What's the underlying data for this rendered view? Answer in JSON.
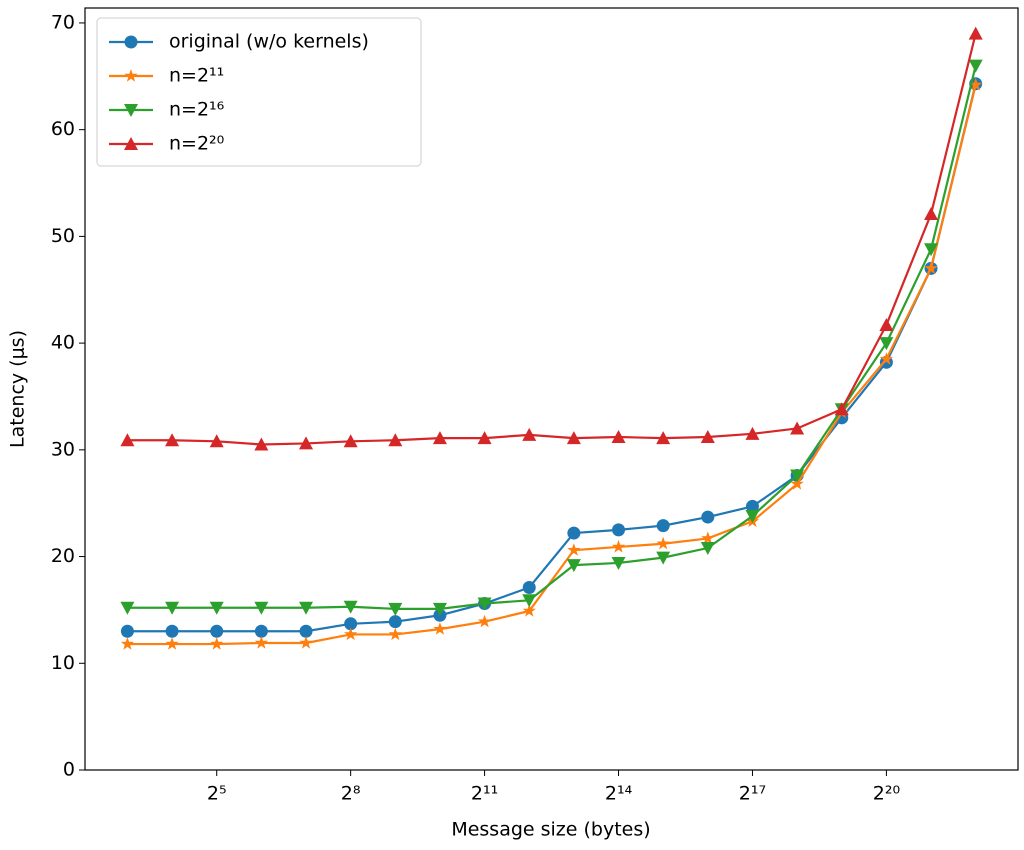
{
  "chart_data": {
    "type": "line",
    "xlabel": "Message size (bytes)",
    "ylabel": "Latency (μs)",
    "xscale": "log",
    "logbase": 2,
    "x": [
      8,
      16,
      32,
      64,
      128,
      256,
      512,
      1024,
      2048,
      4096,
      8192,
      16384,
      32768,
      65536,
      131072,
      262144,
      524288,
      1048576,
      2097152,
      4194304
    ],
    "series": [
      {
        "name": "original (w/o kernels)",
        "color": "#1f77b4",
        "marker": "circle",
        "values": [
          13.0,
          13.0,
          13.0,
          13.0,
          13.0,
          13.7,
          13.9,
          14.5,
          15.6,
          17.1,
          22.2,
          22.5,
          22.9,
          23.7,
          24.7,
          27.6,
          33.0,
          38.2,
          47.0,
          64.3
        ]
      },
      {
        "name": "n=2¹¹",
        "color": "#ff7f0e",
        "marker": "star",
        "values": [
          11.8,
          11.8,
          11.8,
          11.9,
          11.9,
          12.7,
          12.7,
          13.2,
          13.9,
          14.9,
          20.6,
          20.9,
          21.2,
          21.7,
          23.3,
          26.8,
          33.5,
          38.5,
          47.0,
          64.2
        ]
      },
      {
        "name": "n=2¹⁶",
        "color": "#2ca02c",
        "marker": "triangle-down",
        "values": [
          15.2,
          15.2,
          15.2,
          15.2,
          15.2,
          15.3,
          15.1,
          15.1,
          15.6,
          15.9,
          19.2,
          19.4,
          19.9,
          20.8,
          23.8,
          27.6,
          33.8,
          40.0,
          48.8,
          66.0
        ]
      },
      {
        "name": "n=2²⁰",
        "color": "#d62728",
        "marker": "triangle-up",
        "values": [
          30.9,
          30.9,
          30.8,
          30.5,
          30.6,
          30.8,
          30.9,
          31.1,
          31.1,
          31.4,
          31.1,
          31.2,
          31.1,
          31.2,
          31.5,
          32.0,
          33.8,
          41.7,
          52.1,
          69.0
        ]
      }
    ],
    "xlim": [
      4.14,
      8090000
    ],
    "xticks": [
      {
        "value": 32,
        "label": "2⁵"
      },
      {
        "value": 256,
        "label": "2⁸"
      },
      {
        "value": 2048,
        "label": "2¹¹"
      },
      {
        "value": 16384,
        "label": "2¹⁴"
      },
      {
        "value": 131072,
        "label": "2¹⁷"
      },
      {
        "value": 1048576,
        "label": "2²⁰"
      }
    ],
    "ylim": [
      0,
      71.4
    ],
    "yticks": [
      0,
      10,
      20,
      30,
      40,
      50,
      60,
      70
    ],
    "legend": "upper left"
  }
}
